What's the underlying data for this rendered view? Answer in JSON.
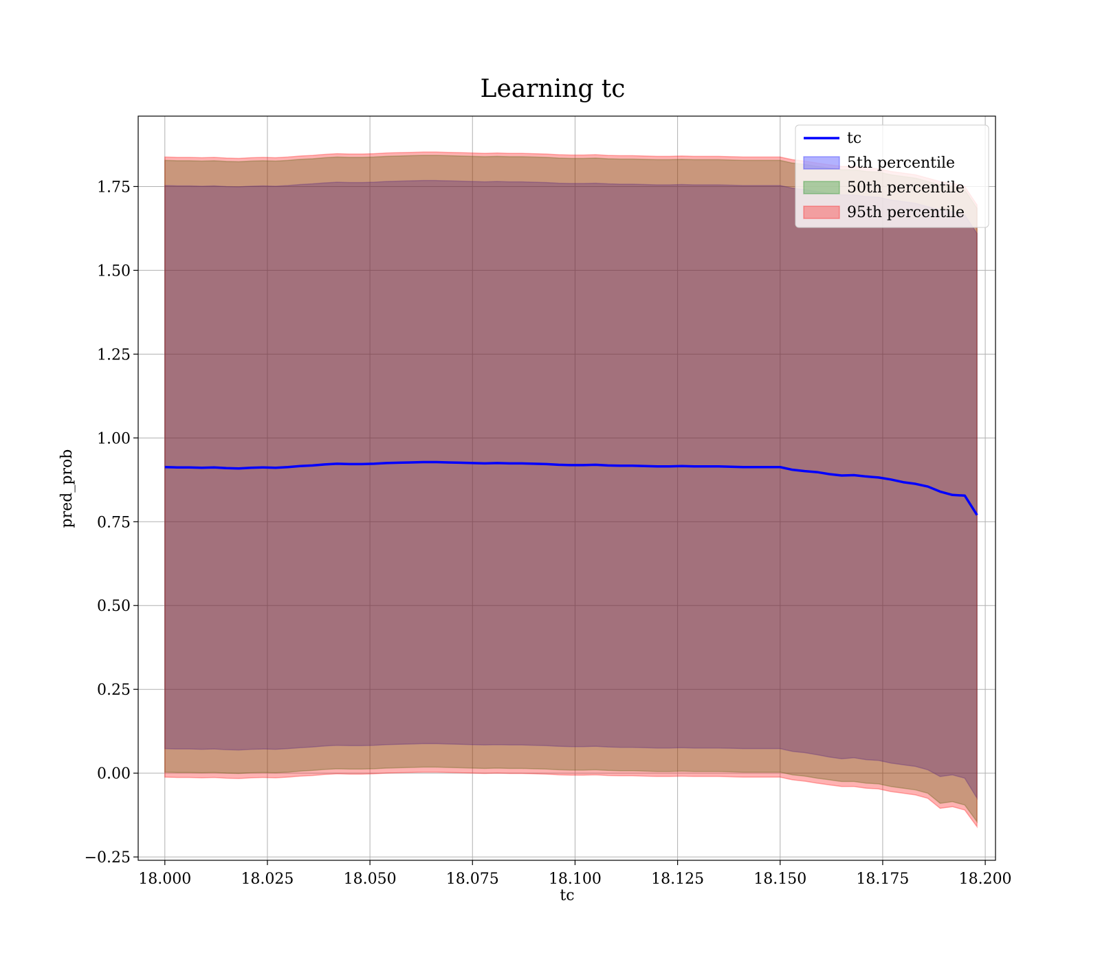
{
  "chart_data": {
    "type": "area",
    "title": "Learning tc",
    "xlabel": "tc",
    "ylabel": "pred_prob",
    "xlim": [
      17.9935,
      18.2025
    ],
    "ylim": [
      -0.26,
      1.96
    ],
    "x_ticks": [
      18.0,
      18.025,
      18.05,
      18.075,
      18.1,
      18.125,
      18.15,
      18.175,
      18.2
    ],
    "x_tick_labels": [
      "18.000",
      "18.025",
      "18.050",
      "18.075",
      "18.100",
      "18.125",
      "18.150",
      "18.175",
      "18.200"
    ],
    "y_ticks": [
      -0.25,
      0.0,
      0.25,
      0.5,
      0.75,
      1.0,
      1.25,
      1.5,
      1.75
    ],
    "y_tick_labels": [
      "−0.25",
      "0.00",
      "0.25",
      "0.50",
      "0.75",
      "1.00",
      "1.25",
      "1.50",
      "1.75"
    ],
    "grid": true,
    "legend_position": "top-right",
    "x": [
      18.0,
      18.003,
      18.006,
      18.009,
      18.012,
      18.015,
      18.018,
      18.021,
      18.024,
      18.027,
      18.03,
      18.033,
      18.036,
      18.039,
      18.042,
      18.045,
      18.048,
      18.051,
      18.054,
      18.057,
      18.06,
      18.063,
      18.066,
      18.069,
      18.072,
      18.075,
      18.078,
      18.081,
      18.084,
      18.087,
      18.09,
      18.093,
      18.096,
      18.099,
      18.102,
      18.105,
      18.108,
      18.111,
      18.114,
      18.117,
      18.12,
      18.123,
      18.126,
      18.129,
      18.132,
      18.135,
      18.138,
      18.141,
      18.144,
      18.147,
      18.15,
      18.153,
      18.156,
      18.159,
      18.162,
      18.165,
      18.168,
      18.171,
      18.174,
      18.177,
      18.18,
      18.183,
      18.186,
      18.189,
      18.192,
      18.195,
      18.198
    ],
    "series": [
      {
        "name": "tc",
        "kind": "line",
        "color": "#0000ff",
        "values": [
          0.913,
          0.912,
          0.912,
          0.911,
          0.912,
          0.91,
          0.909,
          0.911,
          0.912,
          0.911,
          0.913,
          0.916,
          0.918,
          0.921,
          0.923,
          0.922,
          0.922,
          0.923,
          0.925,
          0.926,
          0.927,
          0.928,
          0.928,
          0.927,
          0.926,
          0.925,
          0.924,
          0.925,
          0.924,
          0.924,
          0.923,
          0.922,
          0.92,
          0.919,
          0.919,
          0.92,
          0.918,
          0.917,
          0.917,
          0.916,
          0.915,
          0.915,
          0.916,
          0.915,
          0.915,
          0.915,
          0.914,
          0.913,
          0.913,
          0.913,
          0.913,
          0.905,
          0.901,
          0.898,
          0.892,
          0.888,
          0.889,
          0.885,
          0.882,
          0.876,
          0.868,
          0.863,
          0.855,
          0.84,
          0.83,
          0.828,
          0.77
        ]
      },
      {
        "name": "5th percentile",
        "kind": "band",
        "color": "#0000ff",
        "lower": [
          0.073,
          0.072,
          0.072,
          0.071,
          0.072,
          0.07,
          0.069,
          0.071,
          0.072,
          0.071,
          0.073,
          0.076,
          0.078,
          0.081,
          0.083,
          0.082,
          0.082,
          0.083,
          0.085,
          0.086,
          0.087,
          0.088,
          0.088,
          0.087,
          0.086,
          0.085,
          0.084,
          0.085,
          0.084,
          0.084,
          0.083,
          0.082,
          0.08,
          0.079,
          0.079,
          0.08,
          0.078,
          0.077,
          0.077,
          0.076,
          0.075,
          0.075,
          0.076,
          0.075,
          0.075,
          0.075,
          0.074,
          0.073,
          0.073,
          0.073,
          0.073,
          0.065,
          0.061,
          0.055,
          0.048,
          0.043,
          0.046,
          0.04,
          0.038,
          0.03,
          0.025,
          0.02,
          0.01,
          -0.01,
          -0.005,
          -0.015,
          -0.075
        ],
        "upper": [
          1.753,
          1.752,
          1.752,
          1.751,
          1.752,
          1.75,
          1.749,
          1.751,
          1.752,
          1.751,
          1.753,
          1.756,
          1.758,
          1.761,
          1.763,
          1.762,
          1.762,
          1.763,
          1.765,
          1.766,
          1.767,
          1.768,
          1.768,
          1.767,
          1.766,
          1.765,
          1.764,
          1.765,
          1.764,
          1.764,
          1.763,
          1.762,
          1.76,
          1.759,
          1.759,
          1.76,
          1.758,
          1.757,
          1.757,
          1.756,
          1.755,
          1.755,
          1.756,
          1.755,
          1.755,
          1.755,
          1.754,
          1.753,
          1.753,
          1.753,
          1.753,
          1.745,
          1.741,
          1.735,
          1.73,
          1.725,
          1.725,
          1.72,
          1.718,
          1.71,
          1.705,
          1.7,
          1.69,
          1.68,
          1.675,
          1.665,
          1.61
        ]
      },
      {
        "name": "50th percentile",
        "kind": "band",
        "color": "#008000",
        "lower": [
          0.003,
          0.002,
          0.002,
          0.001,
          0.002,
          0.0,
          -0.001,
          0.001,
          0.002,
          0.001,
          0.003,
          0.006,
          0.008,
          0.011,
          0.013,
          0.012,
          0.012,
          0.013,
          0.015,
          0.016,
          0.017,
          0.018,
          0.018,
          0.017,
          0.016,
          0.015,
          0.014,
          0.015,
          0.014,
          0.014,
          0.013,
          0.012,
          0.01,
          0.009,
          0.009,
          0.01,
          0.008,
          0.007,
          0.007,
          0.006,
          0.005,
          0.005,
          0.006,
          0.005,
          0.005,
          0.005,
          0.004,
          0.003,
          0.003,
          0.003,
          0.003,
          -0.005,
          -0.009,
          -0.015,
          -0.02,
          -0.025,
          -0.025,
          -0.03,
          -0.032,
          -0.04,
          -0.045,
          -0.05,
          -0.06,
          -0.09,
          -0.085,
          -0.095,
          -0.145
        ],
        "upper": [
          1.828,
          1.827,
          1.827,
          1.826,
          1.827,
          1.825,
          1.824,
          1.826,
          1.827,
          1.826,
          1.828,
          1.831,
          1.833,
          1.836,
          1.838,
          1.837,
          1.837,
          1.838,
          1.84,
          1.841,
          1.842,
          1.843,
          1.843,
          1.842,
          1.841,
          1.84,
          1.839,
          1.84,
          1.839,
          1.839,
          1.838,
          1.837,
          1.835,
          1.834,
          1.834,
          1.835,
          1.833,
          1.832,
          1.832,
          1.831,
          1.83,
          1.83,
          1.831,
          1.83,
          1.83,
          1.83,
          1.829,
          1.828,
          1.828,
          1.828,
          1.828,
          1.82,
          1.816,
          1.81,
          1.805,
          1.8,
          1.8,
          1.795,
          1.793,
          1.785,
          1.78,
          1.775,
          1.765,
          1.755,
          1.75,
          1.74,
          1.685
        ]
      },
      {
        "name": "95th percentile",
        "kind": "band",
        "color": "#ff0000",
        "lower": [
          -0.012,
          -0.013,
          -0.013,
          -0.014,
          -0.013,
          -0.015,
          -0.016,
          -0.014,
          -0.013,
          -0.014,
          -0.012,
          -0.009,
          -0.007,
          -0.004,
          -0.002,
          -0.003,
          -0.003,
          -0.002,
          0.0,
          0.001,
          0.002,
          0.003,
          0.003,
          0.002,
          0.001,
          0.0,
          -0.001,
          0.0,
          -0.001,
          -0.001,
          -0.002,
          -0.003,
          -0.005,
          -0.006,
          -0.006,
          -0.005,
          -0.007,
          -0.008,
          -0.008,
          -0.009,
          -0.01,
          -0.01,
          -0.009,
          -0.01,
          -0.01,
          -0.01,
          -0.011,
          -0.012,
          -0.012,
          -0.012,
          -0.012,
          -0.02,
          -0.024,
          -0.03,
          -0.035,
          -0.04,
          -0.04,
          -0.045,
          -0.047,
          -0.055,
          -0.06,
          -0.065,
          -0.075,
          -0.105,
          -0.1,
          -0.11,
          -0.16
        ],
        "upper": [
          1.838,
          1.837,
          1.837,
          1.836,
          1.837,
          1.835,
          1.834,
          1.836,
          1.837,
          1.836,
          1.838,
          1.841,
          1.843,
          1.846,
          1.848,
          1.847,
          1.847,
          1.848,
          1.85,
          1.851,
          1.852,
          1.853,
          1.853,
          1.852,
          1.851,
          1.85,
          1.849,
          1.85,
          1.849,
          1.849,
          1.848,
          1.847,
          1.845,
          1.844,
          1.844,
          1.845,
          1.843,
          1.842,
          1.842,
          1.841,
          1.84,
          1.84,
          1.841,
          1.84,
          1.84,
          1.84,
          1.839,
          1.838,
          1.838,
          1.838,
          1.838,
          1.83,
          1.826,
          1.82,
          1.815,
          1.81,
          1.81,
          1.805,
          1.803,
          1.795,
          1.79,
          1.785,
          1.775,
          1.765,
          1.76,
          1.75,
          1.695
        ]
      }
    ]
  }
}
